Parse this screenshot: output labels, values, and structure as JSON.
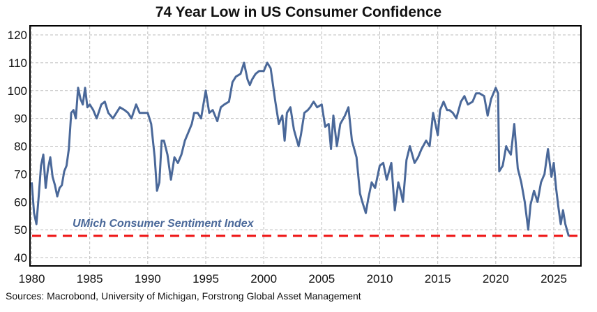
{
  "chart_data": {
    "type": "line",
    "title": "74 Year Low in US Consumer Confidence",
    "xlabel": "",
    "ylabel": "",
    "xlim": [
      1980,
      2026.8
    ],
    "ylim": [
      37,
      123
    ],
    "x_ticks": [
      1980,
      1985,
      1990,
      1995,
      2000,
      2005,
      2010,
      2015,
      2020,
      2025
    ],
    "y_ticks": [
      40,
      50,
      60,
      70,
      80,
      90,
      100,
      110,
      120
    ],
    "grid": true,
    "legend": "none",
    "annotation": "UMich Consumer Sentiment Index",
    "reference_line": {
      "value": 47.8,
      "style": "dashed",
      "color": "#ee1111"
    },
    "series": [
      {
        "name": "UMich Consumer Sentiment Index",
        "color": "#4a6899",
        "x": [
          1980.0,
          1980.2,
          1980.4,
          1980.6,
          1980.8,
          1981.0,
          1981.2,
          1981.4,
          1981.6,
          1981.8,
          1982.0,
          1982.2,
          1982.4,
          1982.6,
          1982.8,
          1983.0,
          1983.2,
          1983.4,
          1983.6,
          1983.8,
          1984.0,
          1984.2,
          1984.4,
          1984.6,
          1984.8,
          1985.0,
          1985.3,
          1985.6,
          1986.0,
          1986.3,
          1986.6,
          1987.0,
          1987.3,
          1987.6,
          1988.0,
          1988.3,
          1988.6,
          1989.0,
          1989.3,
          1989.6,
          1990.0,
          1990.3,
          1990.6,
          1990.8,
          1991.0,
          1991.2,
          1991.4,
          1991.7,
          1992.0,
          1992.3,
          1992.6,
          1992.9,
          1993.2,
          1993.5,
          1993.8,
          1994.0,
          1994.3,
          1994.6,
          1995.0,
          1995.3,
          1995.6,
          1996.0,
          1996.3,
          1996.6,
          1997.0,
          1997.3,
          1997.6,
          1998.0,
          1998.3,
          1998.6,
          1998.8,
          1999.0,
          1999.3,
          1999.6,
          2000.0,
          2000.3,
          2000.6,
          2001.0,
          2001.3,
          2001.6,
          2001.8,
          2002.0,
          2002.3,
          2002.6,
          2003.0,
          2003.2,
          2003.5,
          2003.8,
          2004.0,
          2004.3,
          2004.6,
          2005.0,
          2005.3,
          2005.6,
          2005.8,
          2006.0,
          2006.3,
          2006.6,
          2007.0,
          2007.3,
          2007.6,
          2008.0,
          2008.3,
          2008.5,
          2008.8,
          2009.0,
          2009.3,
          2009.6,
          2010.0,
          2010.3,
          2010.6,
          2011.0,
          2011.3,
          2011.6,
          2011.8,
          2012.0,
          2012.3,
          2012.6,
          2013.0,
          2013.3,
          2013.6,
          2014.0,
          2014.3,
          2014.6,
          2015.0,
          2015.2,
          2015.5,
          2015.8,
          2016.0,
          2016.3,
          2016.6,
          2017.0,
          2017.3,
          2017.6,
          2018.0,
          2018.3,
          2018.6,
          2019.0,
          2019.3,
          2019.6,
          2020.0,
          2020.2,
          2020.3,
          2020.6,
          2020.9,
          2021.0,
          2021.3,
          2021.6,
          2021.9,
          2022.2,
          2022.5,
          2022.8,
          2023.0,
          2023.3,
          2023.6,
          2023.9,
          2024.2,
          2024.5,
          2024.8,
          2025.0,
          2025.2,
          2025.4,
          2025.6,
          2025.8,
          2026.0,
          2026.3
        ],
        "y": [
          67,
          56,
          52,
          62,
          73,
          77,
          65,
          72,
          76,
          69,
          66,
          62,
          65,
          66,
          71,
          73,
          79,
          92,
          93,
          90,
          101,
          97,
          95,
          101,
          94,
          95,
          93,
          90,
          95,
          96,
          92,
          90,
          92,
          94,
          93,
          92,
          90,
          95,
          92,
          92,
          92,
          88,
          76,
          64,
          67,
          82,
          82,
          77,
          68,
          76,
          74,
          77,
          82,
          85,
          88,
          92,
          92,
          90,
          100,
          92,
          93,
          89,
          94,
          95,
          96,
          103,
          105,
          106,
          110,
          104,
          102,
          104,
          106,
          107,
          107,
          110,
          108,
          96,
          88,
          91,
          82,
          92,
          94,
          86,
          80,
          84,
          92,
          93,
          94,
          96,
          94,
          95,
          87,
          88,
          79,
          91,
          80,
          88,
          91,
          94,
          82,
          76,
          63,
          60,
          56,
          61,
          67,
          65,
          73,
          74,
          68,
          74,
          57,
          67,
          64,
          60,
          75,
          80,
          74,
          76,
          79,
          82,
          80,
          92,
          84,
          93,
          96,
          93,
          93,
          92,
          90,
          96,
          98,
          95,
          96,
          99,
          99,
          98,
          91,
          97,
          101,
          99,
          71,
          73,
          80,
          79,
          77,
          88,
          72,
          67,
          60,
          50,
          59,
          64,
          60,
          67,
          70,
          79,
          69,
          74,
          65,
          58,
          52,
          57,
          52,
          47.6
        ]
      }
    ]
  },
  "footer": {
    "source": "Sources: Macrobond, University of Michigan, Forstrong Global Asset Management"
  }
}
